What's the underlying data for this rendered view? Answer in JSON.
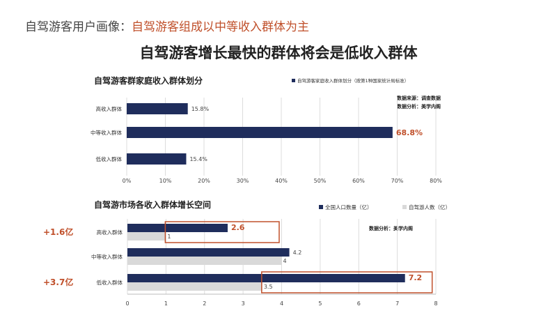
{
  "header": {
    "prefix": "自驾游客用户画像：",
    "highlight": "自驾游客组成以中等收入群体为主"
  },
  "subtitle": "自驾游客增长最快的群体将会是低收入群体",
  "colors": {
    "navy": "#1f2d5c",
    "gray": "#d9d9d9",
    "accent": "#c0502b",
    "grid": "#dcdcdc"
  },
  "chart_data": [
    {
      "type": "bar",
      "orientation": "horizontal",
      "title": "自驾游客群家庭收入群体划分",
      "legend": "自驾游客家庭收入群体划分（按第1种国家统计局标准）",
      "legend_position": "top-right",
      "notes": [
        "数据来源：调查数据",
        "数据分析：美学内阁"
      ],
      "categories": [
        "高收入群体",
        "中等收入群体",
        "低收入群体"
      ],
      "values": [
        15.8,
        68.8,
        15.4
      ],
      "data_labels": [
        "15.8%",
        "68.8%",
        "15.4%"
      ],
      "xlim": [
        0,
        80
      ],
      "x_ticks": [
        "0%",
        "10%",
        "20%",
        "30%",
        "40%",
        "50%",
        "60%",
        "70%",
        "80%"
      ],
      "grid": true
    },
    {
      "type": "bar",
      "orientation": "horizontal",
      "title": "自驾游市场各收入群体增长空间",
      "legend_position": "top-right",
      "notes": [
        "数据分析：美学内阁"
      ],
      "categories": [
        "高收入群体",
        "中等收入群体",
        "低收入群体"
      ],
      "series": [
        {
          "name": "全国人口数量（亿）",
          "values": [
            2.6,
            4.2,
            7.2
          ],
          "labels": [
            "2.6",
            "4.2",
            "7.2"
          ]
        },
        {
          "name": "自驾游人数（亿）",
          "values": [
            1,
            4,
            3.5
          ],
          "labels": [
            "1",
            "4",
            "3.5"
          ]
        }
      ],
      "annotations": [
        "+1.6亿",
        "",
        "+3.7亿"
      ],
      "xlim": [
        0,
        8
      ],
      "x_ticks": [
        "0",
        "1",
        "2",
        "3",
        "4",
        "5",
        "6",
        "7",
        "8"
      ],
      "grid": true
    }
  ]
}
